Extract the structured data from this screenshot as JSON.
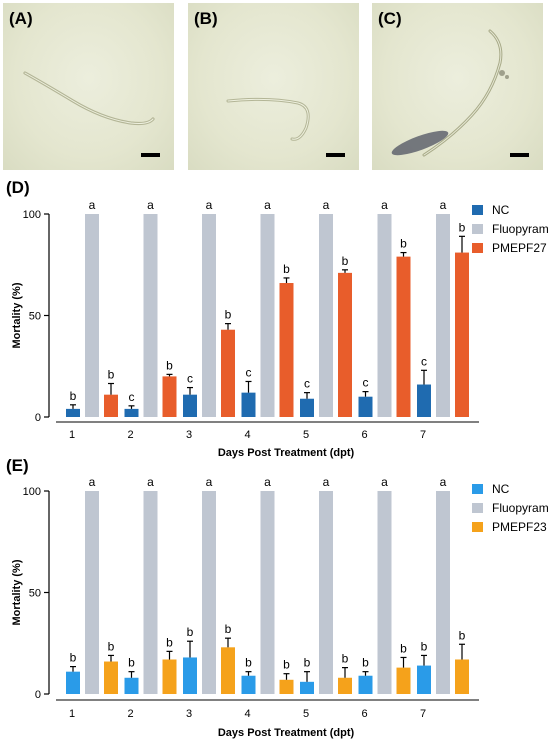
{
  "photos": [
    {
      "label": "(A)"
    },
    {
      "label": "(B)"
    },
    {
      "label": "(C)"
    }
  ],
  "colors": {
    "nc_d": "#1f6bb0",
    "fluopyram": "#bfc6d1",
    "pmepf27": "#e85d2b",
    "nc_e": "#2a9be8",
    "pmepf23": "#f5a21b"
  },
  "chart_data": [
    {
      "panel_label": "(D)",
      "type": "bar",
      "categories": [
        "1",
        "2",
        "3",
        "4",
        "5",
        "6",
        "7"
      ],
      "ylabel": "Mortality (%)",
      "xlabel": "Days Post Treatment (dpt)",
      "ylim": [
        0,
        100
      ],
      "yticks": [
        "0",
        "50",
        "100"
      ],
      "legend_position": "top-right",
      "series": [
        {
          "name": "NC",
          "color": "#1f6bb0",
          "values": [
            4,
            4,
            11,
            12,
            9,
            10,
            16
          ],
          "errors": [
            2,
            1.5,
            3.5,
            5.5,
            3,
            2.5,
            7
          ],
          "letters": [
            "b",
            "c",
            "c",
            "c",
            "c",
            "c",
            "c"
          ]
        },
        {
          "name": "Fluopyram",
          "color": "#bfc6d1",
          "values": [
            100,
            100,
            100,
            100,
            100,
            100,
            100
          ],
          "errors": [
            0,
            0,
            0,
            0,
            0,
            0,
            0
          ],
          "letters": [
            "a",
            "a",
            "a",
            "a",
            "a",
            "a",
            "a"
          ]
        },
        {
          "name": "PMEPF27",
          "color": "#e85d2b",
          "values": [
            11,
            20,
            43,
            66,
            71,
            79,
            81
          ],
          "errors": [
            5.5,
            1,
            3,
            2.5,
            1.5,
            2,
            8
          ],
          "letters": [
            "b",
            "b",
            "b",
            "b",
            "b",
            "b",
            "b"
          ]
        }
      ]
    },
    {
      "panel_label": "(E)",
      "type": "bar",
      "categories": [
        "1",
        "2",
        "3",
        "4",
        "5",
        "6",
        "7"
      ],
      "ylabel": "Mortality (%)",
      "xlabel": "Days Post Treatment (dpt)",
      "ylim": [
        0,
        100
      ],
      "yticks": [
        "0",
        "50",
        "100"
      ],
      "legend_position": "top-right",
      "series": [
        {
          "name": "NC",
          "color": "#2a9be8",
          "values": [
            11,
            8,
            18,
            9,
            6,
            9,
            14
          ],
          "errors": [
            2.5,
            3,
            8,
            2,
            5,
            2,
            5
          ],
          "letters": [
            "b",
            "b",
            "b",
            "b",
            "b",
            "b",
            "b"
          ]
        },
        {
          "name": "Fluopyram",
          "color": "#bfc6d1",
          "values": [
            100,
            100,
            100,
            100,
            100,
            100,
            100
          ],
          "errors": [
            0,
            0,
            0,
            0,
            0,
            0,
            0
          ],
          "letters": [
            "a",
            "a",
            "a",
            "a",
            "a",
            "a",
            "a"
          ]
        },
        {
          "name": "PMEPF23",
          "color": "#f5a21b",
          "values": [
            16,
            17,
            23,
            7,
            8,
            13,
            17
          ],
          "errors": [
            3,
            4,
            4.5,
            3,
            5,
            5,
            7.5
          ],
          "letters": [
            "b",
            "b",
            "b",
            "b",
            "b",
            "b",
            "b"
          ]
        }
      ]
    }
  ]
}
